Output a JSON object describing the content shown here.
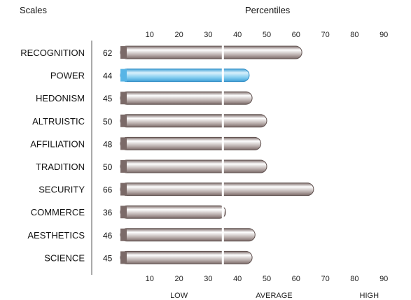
{
  "header": {
    "scales_label": "Scales",
    "percentiles_label": "Percentiles"
  },
  "colors": {
    "bar_default": "#7b6a68",
    "bar_highlight": "#57b5e6",
    "divider": "#ffffff",
    "axis_line": "#555555"
  },
  "chart_data": {
    "type": "bar",
    "orientation": "horizontal",
    "categories": [
      "RECOGNITION",
      "POWER",
      "HEDONISM",
      "ALTRUISTIC",
      "AFFILIATION",
      "TRADITION",
      "SECURITY",
      "COMMERCE",
      "AESTHETICS",
      "SCIENCE"
    ],
    "values": [
      62,
      44,
      45,
      50,
      48,
      50,
      66,
      36,
      46,
      45
    ],
    "highlighted_category": "POWER",
    "xlim": [
      0,
      100
    ],
    "tick_values": [
      10,
      20,
      30,
      40,
      50,
      60,
      70,
      80,
      90
    ],
    "tick_labels": [
      "10",
      "20",
      "30",
      "40",
      "50",
      "60",
      "70",
      "80",
      "90"
    ],
    "average_band_boundary": 35,
    "zone_labels": [
      "LOW",
      "AVERAGE",
      "HIGH"
    ],
    "zone_centers": [
      20,
      52.5,
      85
    ],
    "grid": false,
    "legend": false
  }
}
